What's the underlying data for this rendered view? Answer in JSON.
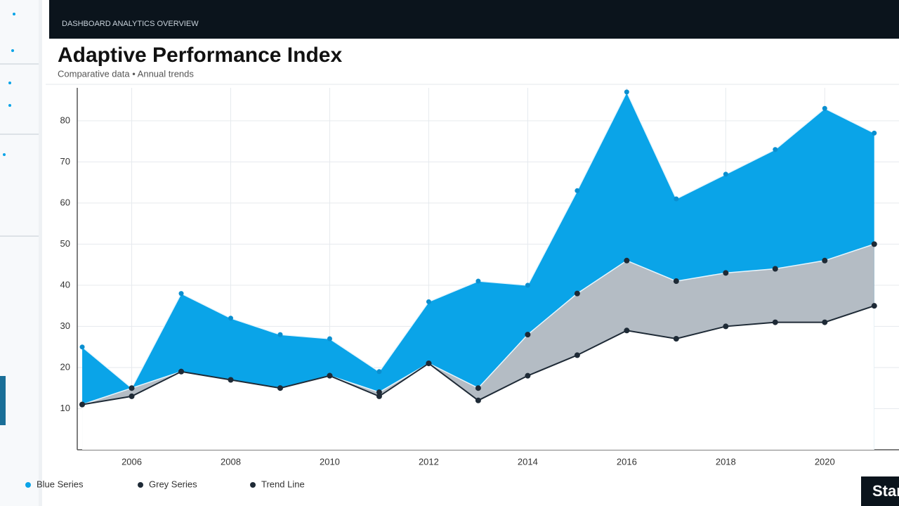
{
  "header": {
    "bar_text": "DASHBOARD ANALYTICS OVERVIEW"
  },
  "button": "Start",
  "chart_data": {
    "type": "area",
    "title": "Adaptive Performance Index",
    "subtitle": "Comparative data • Annual trends",
    "x": [
      2005,
      2006,
      2007,
      2008,
      2009,
      2010,
      2011,
      2012,
      2013,
      2014,
      2015,
      2016,
      2017,
      2018,
      2019,
      2020,
      2021
    ],
    "series": [
      {
        "name": "Blue Series",
        "color": "#0aa4e8",
        "values": [
          25,
          15,
          38,
          32,
          28,
          27,
          19,
          36,
          41,
          40,
          63,
          87,
          61,
          67,
          73,
          83,
          77
        ]
      },
      {
        "name": "Grey Series",
        "color": "#b4bcc4",
        "values": [
          11,
          15,
          19,
          16,
          15,
          18,
          14,
          21,
          15,
          28,
          38,
          46,
          41,
          43,
          44,
          46,
          50
        ]
      },
      {
        "name": "Trend Line",
        "color": "#1e2a36",
        "values": [
          11,
          13,
          19,
          17,
          15,
          18,
          13,
          21,
          12,
          18,
          23,
          29,
          27,
          30,
          31,
          31,
          35
        ]
      }
    ],
    "xlim": [
      2004.9,
      2021.5
    ],
    "xticks": [
      2006,
      2008,
      2010,
      2012,
      2014,
      2016,
      2018,
      2020
    ],
    "ylim": [
      0,
      88
    ],
    "yticks": [
      10,
      20,
      30,
      40,
      50,
      60,
      70,
      80
    ],
    "grid": true,
    "legend": "bottom"
  }
}
